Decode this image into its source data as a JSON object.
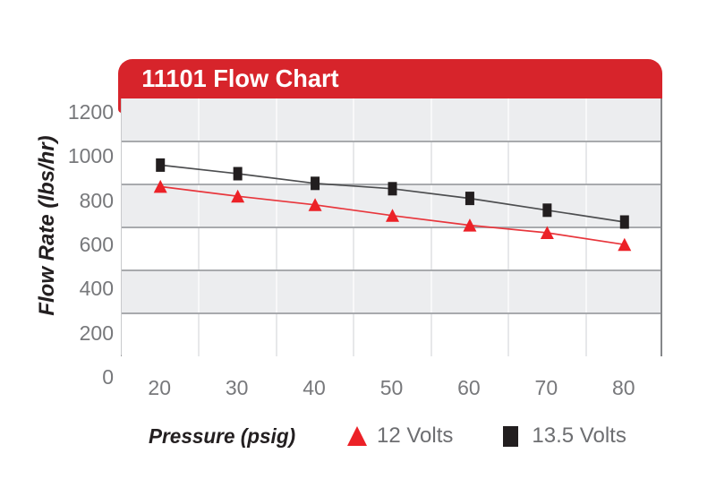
{
  "chart_data": {
    "type": "line",
    "title": "11101 Flow Chart",
    "xlabel": "Pressure (psig)",
    "ylabel": "Flow Rate (lbs/hr)",
    "categories": [
      20,
      30,
      40,
      50,
      60,
      70,
      80
    ],
    "x_tick_labels": [
      "20",
      "30",
      "40",
      "50",
      "60",
      "70",
      "80"
    ],
    "y_tick_labels": [
      "1200",
      "1000",
      "800",
      "600",
      "400",
      "200",
      "0"
    ],
    "ylim": [
      0,
      1200
    ],
    "y_gridline_step": 200,
    "grid": "horizontal alternating bands, vertical category-boundary lines",
    "legend_position": "bottom",
    "series": [
      {
        "name": "12 Volts",
        "marker": "triangle",
        "color": "#EC2127",
        "line_color": "#E8363C",
        "values": [
          790,
          745,
          705,
          655,
          610,
          575,
          520
        ]
      },
      {
        "name": "13.5 Volts",
        "marker": "square",
        "color": "#221E1F",
        "line_color": "#4D4E50",
        "values": [
          890,
          850,
          805,
          780,
          735,
          680,
          625
        ]
      }
    ]
  },
  "colors": {
    "banner_red": "#D7242B",
    "band_gray": "#ECEDEF",
    "band_white": "#FFFFFF",
    "hline_gray": "#A8AAAD",
    "vline_on_gray": "#F8F8F9",
    "vline_on_white": "#E7E8EA",
    "tick_text": "#77787B",
    "legend_text": "#6D6E71"
  }
}
